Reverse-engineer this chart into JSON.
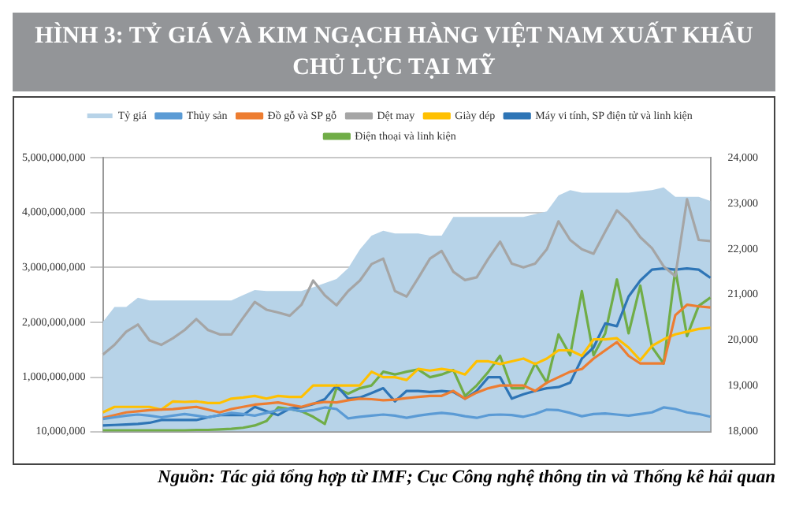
{
  "chart_data": {
    "type": "line",
    "title": "HÌNH 3: TỶ GIÁ VÀ KIM NGẠCH HÀNG VIỆT NAM XUẤT KHẨU CHỦ LỰC TẠI MỸ",
    "annotations": [
      "Nguồn: Tác giả tổng hợp từ IMF; Cục Công nghệ thông tin và Thống kê hải quan"
    ],
    "categories": [
      null,
      null,
      null,
      null,
      null,
      null,
      null,
      null,
      null,
      null,
      null,
      null,
      null,
      null,
      null,
      null,
      null,
      null,
      null,
      null,
      null,
      null,
      null,
      null,
      null,
      null,
      null,
      null,
      null,
      null,
      null,
      null,
      null,
      null,
      null,
      null,
      null,
      null,
      null,
      null,
      null,
      null,
      null,
      null,
      null,
      null,
      null,
      null,
      null,
      null,
      null,
      null,
      null
    ],
    "series": [
      {
        "name": "Tỷ giá",
        "type": "area",
        "axis": "y2",
        "color": "#b7d3e8",
        "values": [
          20400,
          20730,
          20730,
          20930,
          20870,
          20870,
          20870,
          20870,
          20870,
          20870,
          20870,
          20870,
          20990,
          21100,
          21080,
          21080,
          21080,
          21080,
          21160,
          21250,
          21340,
          21580,
          21990,
          22290,
          22400,
          22340,
          22340,
          22340,
          22290,
          22290,
          22700,
          22700,
          22700,
          22700,
          22700,
          22700,
          22700,
          22760,
          22820,
          23170,
          23290,
          23230,
          23230,
          23230,
          23230,
          23230,
          23260,
          23290,
          23350,
          23140,
          23140,
          23140,
          23050
        ]
      },
      {
        "name": "Thủy sản",
        "color": "#5b9bd5",
        "values": [
          240000000,
          270000000,
          300000000,
          320000000,
          300000000,
          270000000,
          300000000,
          330000000,
          300000000,
          270000000,
          310000000,
          350000000,
          330000000,
          300000000,
          350000000,
          400000000,
          420000000,
          380000000,
          400000000,
          450000000,
          420000000,
          250000000,
          280000000,
          300000000,
          320000000,
          300000000,
          260000000,
          300000000,
          330000000,
          350000000,
          330000000,
          290000000,
          260000000,
          310000000,
          320000000,
          310000000,
          280000000,
          330000000,
          410000000,
          400000000,
          350000000,
          290000000,
          330000000,
          340000000,
          320000000,
          300000000,
          330000000,
          360000000,
          450000000,
          420000000,
          360000000,
          330000000,
          280000000
        ]
      },
      {
        "name": "Đồ gỗ và SP gỗ",
        "color": "#ed7d31",
        "values": [
          260000000,
          310000000,
          360000000,
          380000000,
          400000000,
          410000000,
          420000000,
          440000000,
          460000000,
          410000000,
          360000000,
          420000000,
          460000000,
          500000000,
          520000000,
          540000000,
          500000000,
          460000000,
          520000000,
          550000000,
          540000000,
          580000000,
          610000000,
          600000000,
          580000000,
          590000000,
          620000000,
          640000000,
          660000000,
          660000000,
          750000000,
          610000000,
          720000000,
          800000000,
          850000000,
          850000000,
          850000000,
          750000000,
          900000000,
          1000000000,
          1100000000,
          1150000000,
          1340000000,
          1490000000,
          1640000000,
          1390000000,
          1250000000,
          1250000000,
          1250000000,
          2130000000,
          2320000000,
          2290000000,
          2270000000
        ]
      },
      {
        "name": "Dệt may",
        "color": "#a5a5a5",
        "values": [
          1410000000,
          1590000000,
          1830000000,
          1960000000,
          1670000000,
          1590000000,
          1710000000,
          1860000000,
          2060000000,
          1860000000,
          1780000000,
          1780000000,
          2080000000,
          2370000000,
          2230000000,
          2180000000,
          2120000000,
          2320000000,
          2760000000,
          2490000000,
          2310000000,
          2570000000,
          2760000000,
          3060000000,
          3160000000,
          2570000000,
          2470000000,
          2810000000,
          3160000000,
          3300000000,
          2920000000,
          2770000000,
          2820000000,
          3160000000,
          3470000000,
          3070000000,
          3000000000,
          3070000000,
          3330000000,
          3840000000,
          3500000000,
          3330000000,
          3250000000,
          3650000000,
          4040000000,
          3840000000,
          3550000000,
          3350000000,
          3020000000,
          2840000000,
          4240000000,
          3500000000,
          3480000000
        ]
      },
      {
        "name": "Giày dép",
        "color": "#ffc000",
        "values": [
          360000000,
          460000000,
          460000000,
          460000000,
          460000000,
          410000000,
          560000000,
          550000000,
          560000000,
          530000000,
          530000000,
          610000000,
          630000000,
          660000000,
          610000000,
          660000000,
          640000000,
          640000000,
          850000000,
          850000000,
          850000000,
          850000000,
          850000000,
          1100000000,
          1000000000,
          1000000000,
          950000000,
          1150000000,
          1120000000,
          1150000000,
          1120000000,
          1050000000,
          1290000000,
          1290000000,
          1240000000,
          1290000000,
          1340000000,
          1240000000,
          1340000000,
          1490000000,
          1490000000,
          1390000000,
          1690000000,
          1690000000,
          1710000000,
          1540000000,
          1310000000,
          1570000000,
          1690000000,
          1780000000,
          1830000000,
          1880000000,
          1900000000
        ]
      },
      {
        "name": "Máy vi tính, SP điện tử và linh kiện",
        "color": "#2e75b6",
        "values": [
          120000000,
          130000000,
          140000000,
          150000000,
          170000000,
          220000000,
          220000000,
          220000000,
          220000000,
          270000000,
          310000000,
          310000000,
          310000000,
          460000000,
          380000000,
          310000000,
          430000000,
          450000000,
          510000000,
          600000000,
          850000000,
          610000000,
          630000000,
          710000000,
          800000000,
          560000000,
          750000000,
          750000000,
          730000000,
          750000000,
          730000000,
          610000000,
          750000000,
          1000000000,
          1000000000,
          610000000,
          690000000,
          750000000,
          800000000,
          820000000,
          900000000,
          1340000000,
          1540000000,
          1980000000,
          1930000000,
          2470000000,
          2760000000,
          2960000000,
          2980000000,
          2960000000,
          2980000000,
          2960000000,
          2810000000
        ]
      },
      {
        "name": "Điện thoại và linh kiện",
        "color": "#70ad47",
        "values": [
          30000000,
          30000000,
          30000000,
          30000000,
          30000000,
          30000000,
          30000000,
          30000000,
          40000000,
          40000000,
          50000000,
          60000000,
          80000000,
          120000000,
          200000000,
          450000000,
          420000000,
          380000000,
          280000000,
          150000000,
          800000000,
          700000000,
          800000000,
          850000000,
          1100000000,
          1050000000,
          1100000000,
          1140000000,
          1000000000,
          1050000000,
          1130000000,
          660000000,
          850000000,
          1100000000,
          1390000000,
          800000000,
          800000000,
          1250000000,
          900000000,
          1780000000,
          1400000000,
          2570000000,
          1400000000,
          1800000000,
          2780000000,
          1800000000,
          2670000000,
          1550000000,
          1250000000,
          2960000000,
          1750000000,
          2300000000,
          2450000000
        ]
      }
    ],
    "ylim": [
      10000000,
      5000000000
    ],
    "yticks": [
      {
        "value": 10000000,
        "label": "10,000,000"
      },
      {
        "value": 1000000000,
        "label": "1,000,000,000"
      },
      {
        "value": 2000000000,
        "label": "2,000,000,000"
      },
      {
        "value": 3000000000,
        "label": "3,000,000,000"
      },
      {
        "value": 4000000000,
        "label": "4,000,000,000"
      },
      {
        "value": 5000000000,
        "label": "5,000,000,000"
      }
    ],
    "y2lim": [
      18000,
      24000
    ],
    "y2ticks": [
      {
        "value": 18000,
        "label": "18,000"
      },
      {
        "value": 19000,
        "label": "19,000"
      },
      {
        "value": 20000,
        "label": "20,000"
      },
      {
        "value": 21000,
        "label": "21,000"
      },
      {
        "value": 22000,
        "label": "22,000"
      },
      {
        "value": 23000,
        "label": "23,000"
      },
      {
        "value": 24000,
        "label": "24,000"
      }
    ],
    "grid": "y",
    "legend": "top",
    "marker": "none",
    "line_style": "solid"
  }
}
